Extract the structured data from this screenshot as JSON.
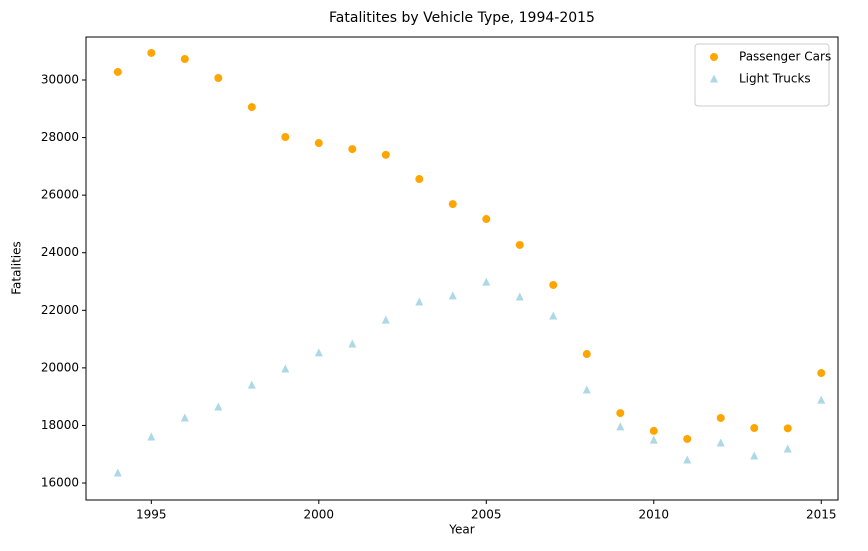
{
  "chart_data": {
    "type": "scatter",
    "title": "Fatalitites by Vehicle Type, 1994-2015",
    "x_label": "Year",
    "y_label": "Fatalities",
    "x": [
      1994,
      1995,
      1996,
      1997,
      1998,
      1999,
      2000,
      2001,
      2002,
      2003,
      2004,
      2005,
      2006,
      2007,
      2008,
      2009,
      2010,
      2011,
      2012,
      2013,
      2014,
      2015
    ],
    "series": [
      {
        "name": "Passenger Cars",
        "color": "orange",
        "marker": "circle",
        "values": [
          30280,
          30940,
          30730,
          30070,
          29060,
          28020,
          27810,
          27600,
          27400,
          26560,
          25690,
          25170,
          24270,
          22880,
          20480,
          18430,
          17810,
          17530,
          18260,
          17910,
          17900,
          19820
        ]
      },
      {
        "name": "Light Trucks",
        "color": "lightblue",
        "marker": "triangle",
        "values": [
          16350,
          17600,
          18260,
          18640,
          19400,
          19960,
          20520,
          20830,
          21660,
          22290,
          22500,
          22980,
          22460,
          21800,
          19230,
          17950,
          17490,
          16800,
          17390,
          16940,
          17180,
          18880
        ]
      }
    ],
    "xlim": [
      1993.05,
      2015.5
    ],
    "xticks": [
      1995,
      2000,
      2005,
      2010,
      2015
    ],
    "ylim": [
      15410,
      31494
    ],
    "yticks": [
      16000,
      18000,
      20000,
      22000,
      24000,
      26000,
      28000,
      30000
    ],
    "grid": false,
    "legend": "upper right"
  }
}
